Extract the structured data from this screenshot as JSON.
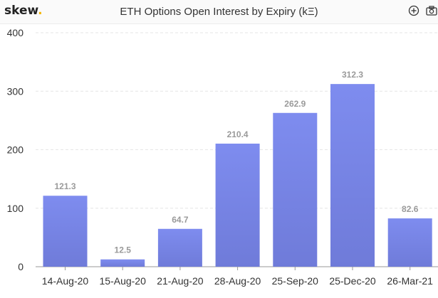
{
  "header": {
    "logo_text": "skew",
    "logo_dot": "."
  },
  "toolbar": {
    "zoom_icon": "zoom-in-icon",
    "camera_icon": "camera-icon"
  },
  "colors": {
    "bar_top": "#7e8cef",
    "bar_bottom": "#6f7bd9",
    "grid": "#e6e6e6",
    "axis": "#999999",
    "logo_dot": "#f4b400"
  },
  "chart_data": {
    "type": "bar",
    "title": "ETH Options Open Interest by Expiry (kΞ)",
    "xlabel": "",
    "ylabel": "",
    "categories": [
      "14-Aug-20",
      "15-Aug-20",
      "21-Aug-20",
      "28-Aug-20",
      "25-Sep-20",
      "25-Dec-20",
      "26-Mar-21"
    ],
    "values": [
      121.3,
      12.5,
      64.7,
      210.4,
      262.9,
      312.3,
      82.6
    ],
    "data_labels": [
      "121.3",
      "12.5",
      "64.7",
      "210.4",
      "262.9",
      "312.3",
      "82.6"
    ],
    "ylim": [
      0,
      400
    ],
    "yticks": [
      0,
      100,
      200,
      300,
      400
    ],
    "grid": true,
    "legend": "none"
  }
}
